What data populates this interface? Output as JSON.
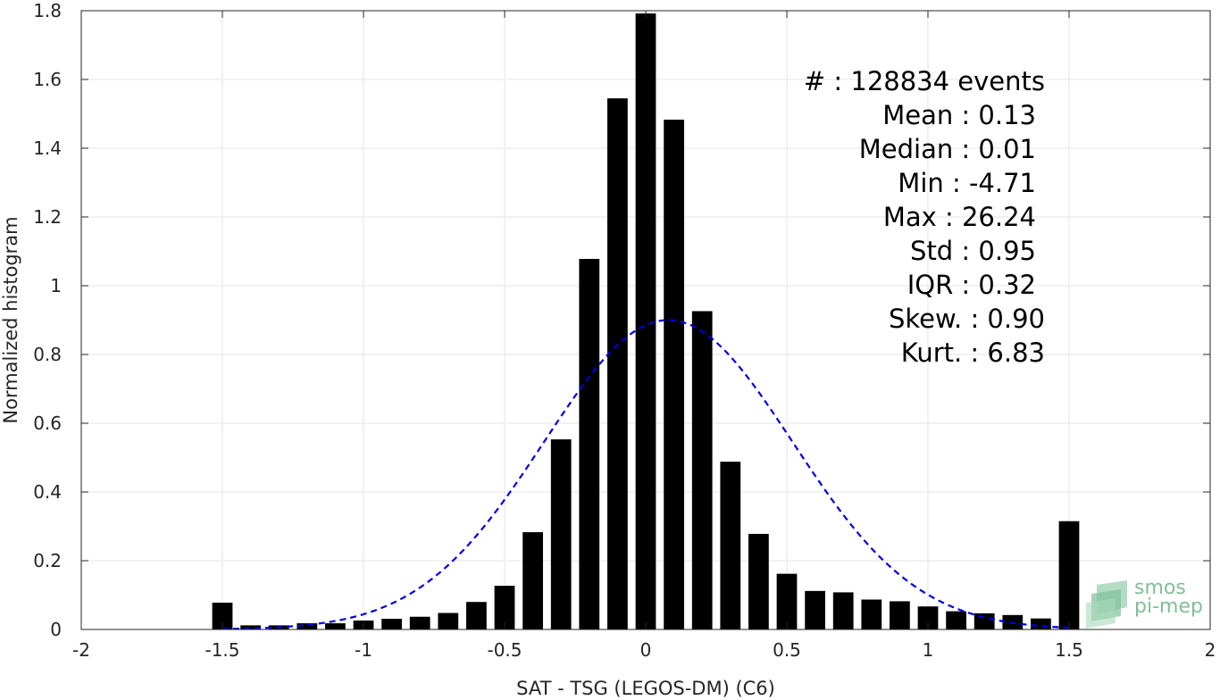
{
  "chart_data": {
    "type": "bar",
    "xlabel": "SAT - TSG (LEGOS-DM) (C6)",
    "ylabel": "Normalized histogram",
    "xlim": [
      -2,
      2
    ],
    "ylim": [
      0,
      1.8
    ],
    "x_ticks": [
      -2,
      -1.5,
      -1,
      -0.5,
      0,
      0.5,
      1,
      1.5,
      2
    ],
    "x_tick_labels": [
      "-2",
      "-1.5",
      "-1",
      "-0.5",
      "0",
      "0.5",
      "1",
      "1.5",
      "2"
    ],
    "y_ticks": [
      0,
      0.2,
      0.4,
      0.6,
      0.8,
      1,
      1.2,
      1.4,
      1.6,
      1.8
    ],
    "y_tick_labels": [
      "0",
      "0.2",
      "0.4",
      "0.6",
      "0.8",
      "1",
      "1.2",
      "1.4",
      "1.6",
      "1.8"
    ],
    "grid": true,
    "bar_color": "#000000",
    "bins": {
      "x": [
        -1.5,
        -1.4,
        -1.3,
        -1.2,
        -1.1,
        -1.0,
        -0.9,
        -0.8,
        -0.7,
        -0.6,
        -0.5,
        -0.4,
        -0.3,
        -0.2,
        -0.1,
        0.0,
        0.1,
        0.2,
        0.3,
        0.4,
        0.5,
        0.6,
        0.7,
        0.8,
        0.9,
        1.0,
        1.1,
        1.2,
        1.3,
        1.4,
        1.5
      ],
      "values": [
        0.078,
        0.012,
        0.012,
        0.018,
        0.018,
        0.026,
        0.031,
        0.037,
        0.048,
        0.08,
        0.127,
        0.283,
        0.553,
        1.078,
        1.545,
        1.792,
        1.483,
        0.926,
        0.488,
        0.278,
        0.162,
        0.112,
        0.108,
        0.087,
        0.082,
        0.067,
        0.053,
        0.047,
        0.042,
        0.032,
        0.315
      ]
    },
    "fit_curve": {
      "type": "normal",
      "mean": 0.08,
      "std": 0.44,
      "peak": 0.9,
      "xrange": [
        -1.5,
        1.5
      ],
      "color": "#0000dd",
      "style": "dashed"
    },
    "stats": [
      "#  : 128834 events",
      "Mean : 0.13",
      "Median : 0.01",
      "Min : -4.71",
      "Max : 26.24",
      "Std : 0.95",
      "IQR : 0.32",
      "Skew. : 0.90",
      "Kurt. : 6.83"
    ]
  },
  "logo": {
    "line1": "smos",
    "line2": "pi-mep",
    "color": "#7fbf9a"
  }
}
